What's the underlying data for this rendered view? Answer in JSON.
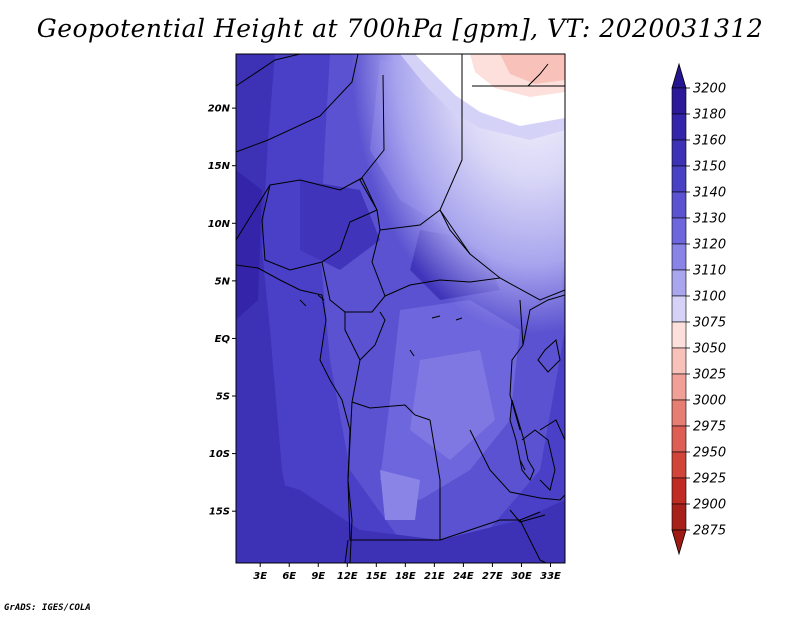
{
  "title": "Geopotential Height at 700hPa [gpm], VT: 2020031312",
  "credit": "GrADS: IGES/COLA",
  "map": {
    "lat_ticks": [
      {
        "value": 20,
        "label": "20N"
      },
      {
        "value": 15,
        "label": "15N"
      },
      {
        "value": 10,
        "label": "10N"
      },
      {
        "value": 5,
        "label": "5N"
      },
      {
        "value": 0,
        "label": "EQ"
      },
      {
        "value": -5,
        "label": "5S"
      },
      {
        "value": -10,
        "label": "10S"
      },
      {
        "value": -15,
        "label": "15S"
      }
    ],
    "lon_ticks": [
      {
        "value": 3,
        "label": "3E"
      },
      {
        "value": 6,
        "label": "6E"
      },
      {
        "value": 9,
        "label": "9E"
      },
      {
        "value": 12,
        "label": "12E"
      },
      {
        "value": 15,
        "label": "15E"
      },
      {
        "value": 18,
        "label": "18E"
      },
      {
        "value": 21,
        "label": "21E"
      },
      {
        "value": 24,
        "label": "24E"
      },
      {
        "value": 27,
        "label": "27E"
      },
      {
        "value": 30,
        "label": "30E"
      },
      {
        "value": 33,
        "label": "33E"
      }
    ],
    "lon_range": [
      0.5,
      34.5
    ],
    "lat_range": [
      -19.5,
      24.7
    ]
  },
  "colorbar": {
    "levels": [
      {
        "label": "3200",
        "color": "#2a1a9a"
      },
      {
        "label": "3180",
        "color": "#3424aa"
      },
      {
        "label": "3160",
        "color": "#3d32b6"
      },
      {
        "label": "3150",
        "color": "#4841c4"
      },
      {
        "label": "3140",
        "color": "#5a52d0"
      },
      {
        "label": "3130",
        "color": "#6e66dc"
      },
      {
        "label": "3120",
        "color": "#8a84e6"
      },
      {
        "label": "3110",
        "color": "#aaa6ee"
      },
      {
        "label": "3100",
        "color": "#d4d2f6"
      },
      {
        "label": "3075",
        "color": "#ffffff"
      },
      {
        "label": "3050",
        "color": "#fde0dc"
      },
      {
        "label": "3025",
        "color": "#f8c2ba"
      },
      {
        "label": "3000",
        "color": "#f0a096"
      },
      {
        "label": "2975",
        "color": "#e67e74"
      },
      {
        "label": "2950",
        "color": "#dc5e54"
      },
      {
        "label": "2925",
        "color": "#d0443a"
      },
      {
        "label": "2900",
        "color": "#c02c24"
      },
      {
        "label": "2875",
        "color": "#a8201a"
      }
    ],
    "top_cap_color": "#241590",
    "bottom_cap_color": "#a01a14"
  }
}
